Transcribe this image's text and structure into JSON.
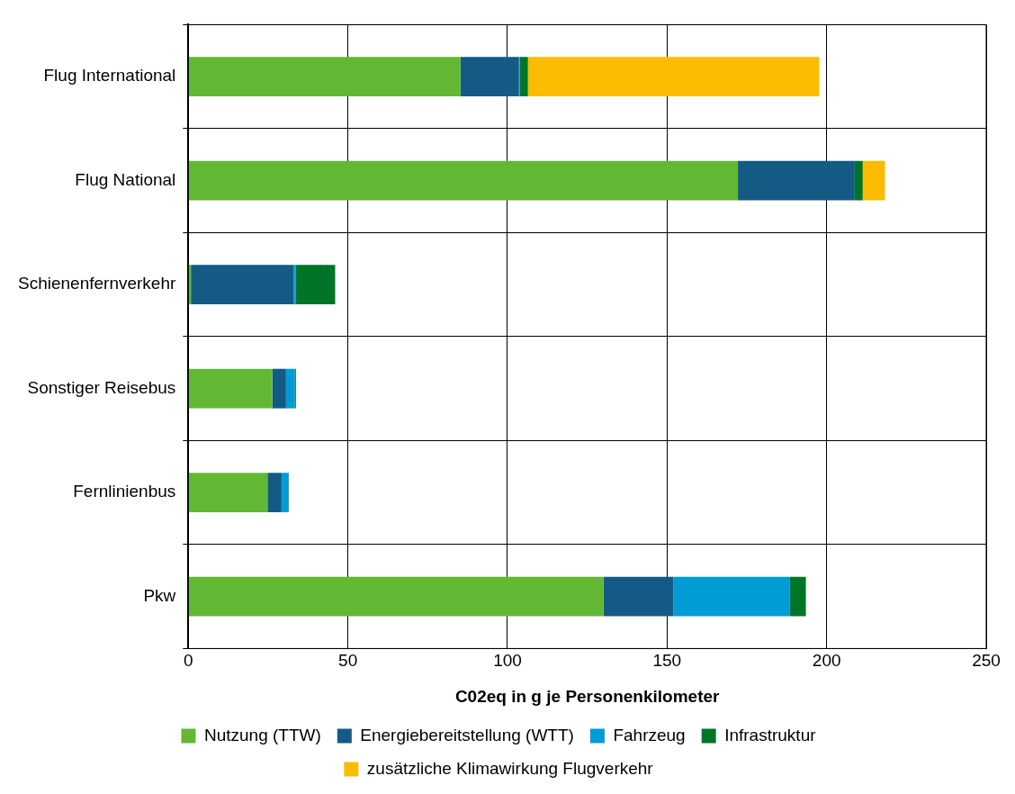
{
  "chart_data": {
    "type": "bar",
    "orientation": "horizontal",
    "stacked": true,
    "xlabel": "C02eq in g je Personenkilometer",
    "categories": [
      "Flug International",
      "Flug National",
      "Schienenfernverkehr",
      "Sonstiger Reisebus",
      "Fernlinienbus",
      "Pkw"
    ],
    "series": [
      {
        "name": "Nutzung (TTW)",
        "color": "#62b833",
        "values": [
          85.3,
          172.2,
          0.8,
          26.3,
          24.8,
          130.1
        ]
      },
      {
        "name": "Energiebereitstellung (WTT)",
        "color": "#135a85",
        "values": [
          18.3,
          36.6,
          32.2,
          4.3,
          4.4,
          21.9
        ]
      },
      {
        "name": "Fahrzeug",
        "color": "#009cd6",
        "values": [
          0.3,
          0,
          0.7,
          2.7,
          2.1,
          36.5
        ]
      },
      {
        "name": "Infrastruktur",
        "color": "#007527",
        "values": [
          2.5,
          2.5,
          12.3,
          0.4,
          0.2,
          5
        ]
      },
      {
        "name": "zusätzliche Klimawirkung Flugverkehr",
        "color": "#fbbc00",
        "values": [
          91.3,
          7,
          0,
          0,
          0,
          0
        ]
      }
    ],
    "xlim": [
      0,
      250
    ],
    "xticks": [
      0,
      50,
      100,
      150,
      200,
      250
    ],
    "grid": true,
    "legend": "bottom"
  }
}
